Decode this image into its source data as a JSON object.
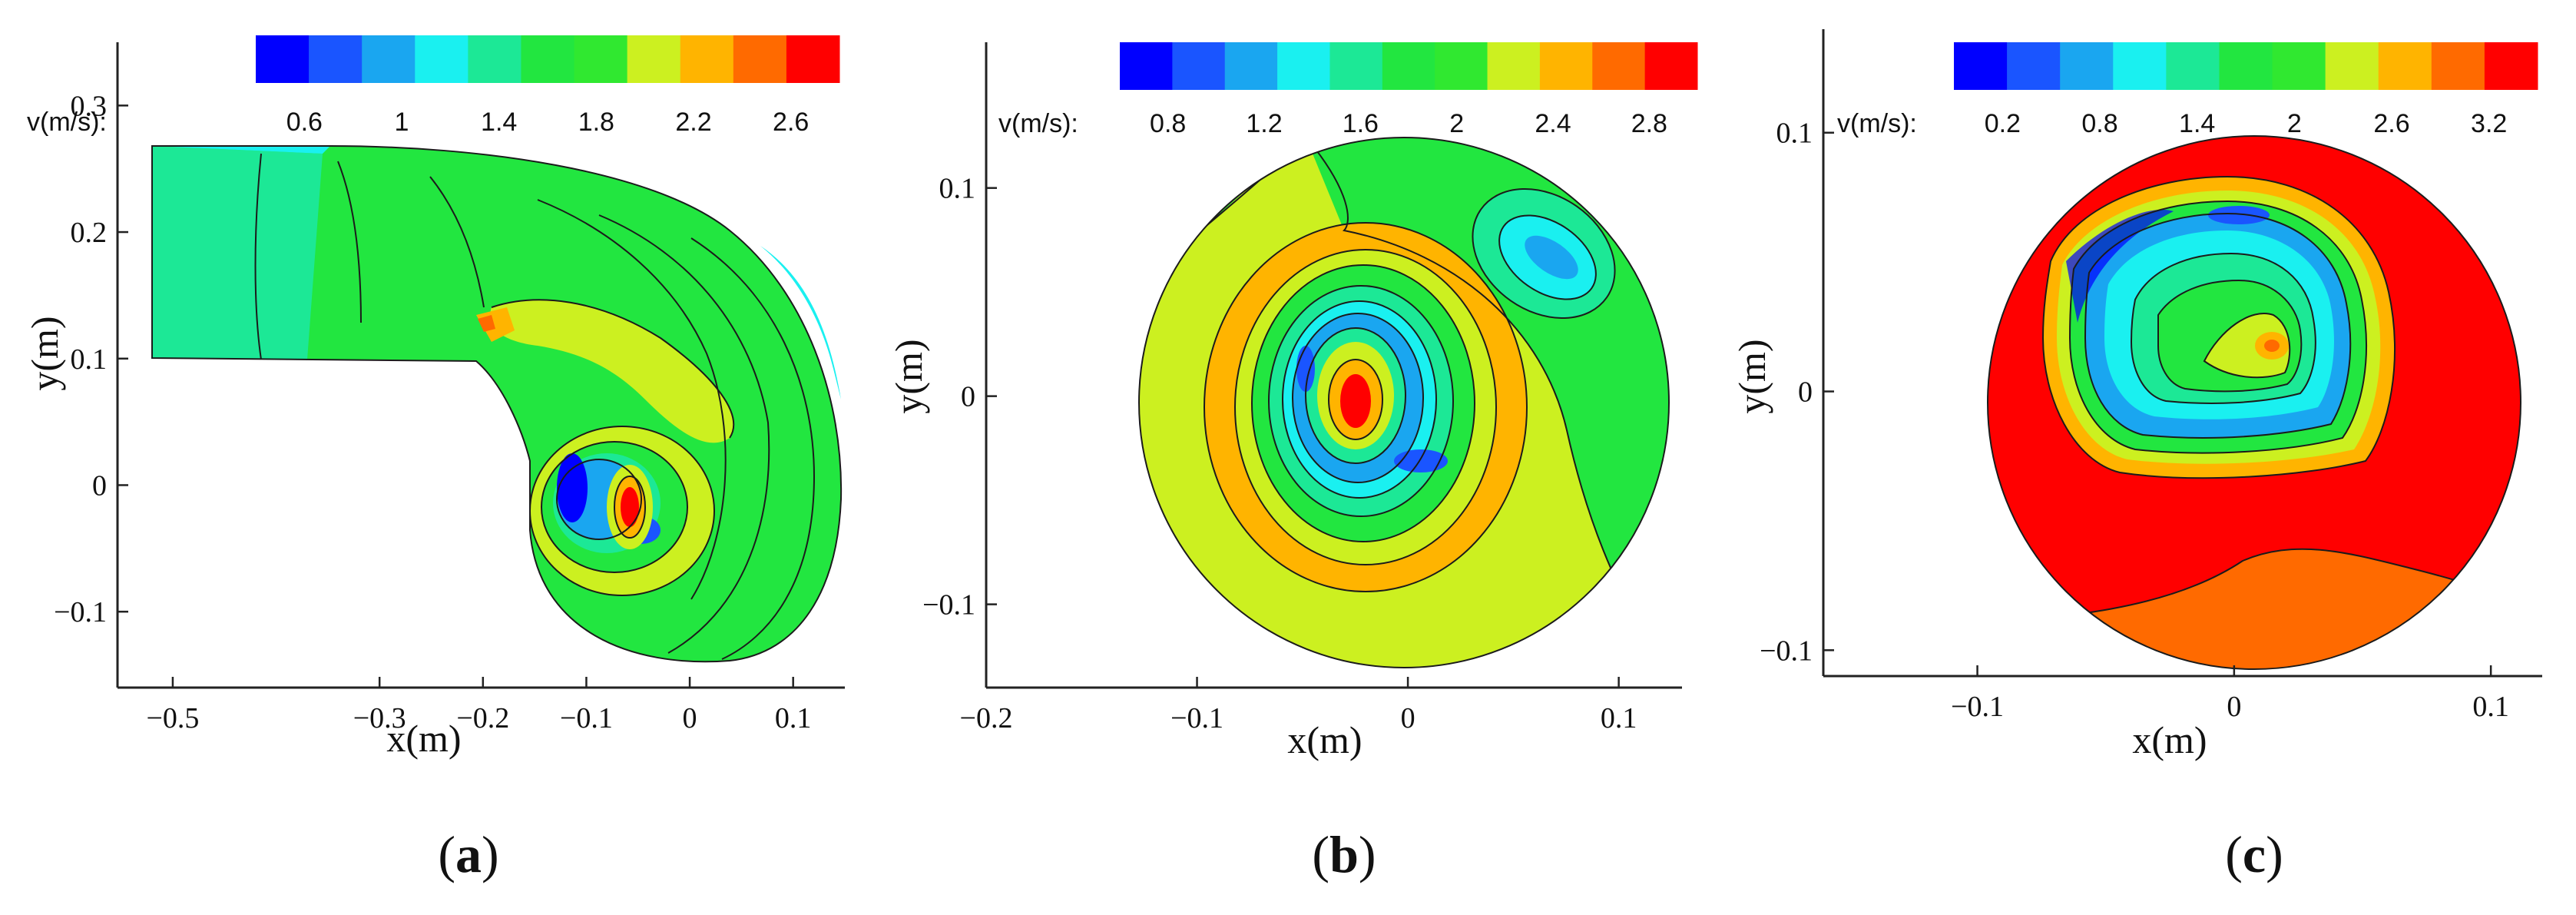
{
  "chart_data": [
    {
      "type": "contour",
      "panel_label": "a",
      "title": "",
      "xlabel": "x(m)",
      "ylabel": "y(m)",
      "xlim": [
        -0.52,
        0.15
      ],
      "ylim": [
        -0.16,
        0.35
      ],
      "xticks": [
        -0.5,
        -0.3,
        -0.2,
        -0.1,
        0,
        0.1
      ],
      "xtick_labels": [
        "−0.5",
        "−0.3",
        "−0.2",
        "−0.1",
        "0",
        "0.1"
      ],
      "yticks": [
        -0.1,
        0,
        0.1,
        0.2,
        0.3
      ],
      "ytick_labels": [
        "−0.1",
        "0",
        "0.1",
        "0.2",
        "0.3"
      ],
      "colorbar": {
        "label": "v(m/s):",
        "range": [
          0.4,
          2.8
        ],
        "ticks": [
          0.6,
          1,
          1.4,
          1.8,
          2.2,
          2.6
        ],
        "tick_labels": [
          "0.6",
          "1",
          "1.4",
          "1.8",
          "2.2",
          "2.6"
        ]
      },
      "description_values": {
        "core_max_velocity": 2.8,
        "core_min_velocity": 0.6
      }
    },
    {
      "type": "contour",
      "panel_label": "b",
      "title": "",
      "xlabel": "x(m)",
      "ylabel": "y(m)",
      "xlim": [
        -0.2,
        0.13
      ],
      "ylim": [
        -0.14,
        0.17
      ],
      "xticks": [
        -0.2,
        -0.1,
        0,
        0.1
      ],
      "xtick_labels": [
        "−0.2",
        "−0.1",
        "0",
        "0.1"
      ],
      "yticks": [
        -0.1,
        0,
        0.1
      ],
      "ytick_labels": [
        "−0.1",
        "0",
        "0.1"
      ],
      "colorbar": {
        "label": "v(m/s):",
        "range": [
          0.6,
          3.0
        ],
        "ticks": [
          0.8,
          1.2,
          1.6,
          2,
          2.4,
          2.8
        ],
        "tick_labels": [
          "0.8",
          "1.2",
          "1.6",
          "2",
          "2.4",
          "2.8"
        ]
      },
      "description_values": {
        "core_max_velocity": 3.0,
        "core_min_velocity": 0.8
      }
    },
    {
      "type": "contour",
      "panel_label": "c",
      "title": "",
      "xlabel": "x(m)",
      "ylabel": "y(m)",
      "xlim": [
        -0.16,
        0.12
      ],
      "ylim": [
        -0.11,
        0.14
      ],
      "xticks": [
        -0.1,
        0,
        0.1
      ],
      "xtick_labels": [
        "−0.1",
        "0",
        "0.1"
      ],
      "yticks": [
        -0.1,
        0,
        0.1
      ],
      "ytick_labels": [
        "−0.1",
        "0",
        "0.1"
      ],
      "colorbar": {
        "label": "v(m/s):",
        "range": [
          -0.1,
          3.5
        ],
        "ticks": [
          0.2,
          0.8,
          1.4,
          2,
          2.6,
          3.2
        ],
        "tick_labels": [
          "0.2",
          "0.8",
          "1.4",
          "2",
          "2.6",
          "3.2"
        ]
      },
      "description_values": {
        "core_max_velocity": 3.5,
        "core_min_velocity": 0.2
      }
    }
  ],
  "palette": [
    "#0000ff",
    "#1a55ff",
    "#1aa6f0",
    "#1af0f0",
    "#1ce896",
    "#22e640",
    "#30e830",
    "#ccf020",
    "#ffb400",
    "#ff6a00",
    "#ff0000"
  ]
}
